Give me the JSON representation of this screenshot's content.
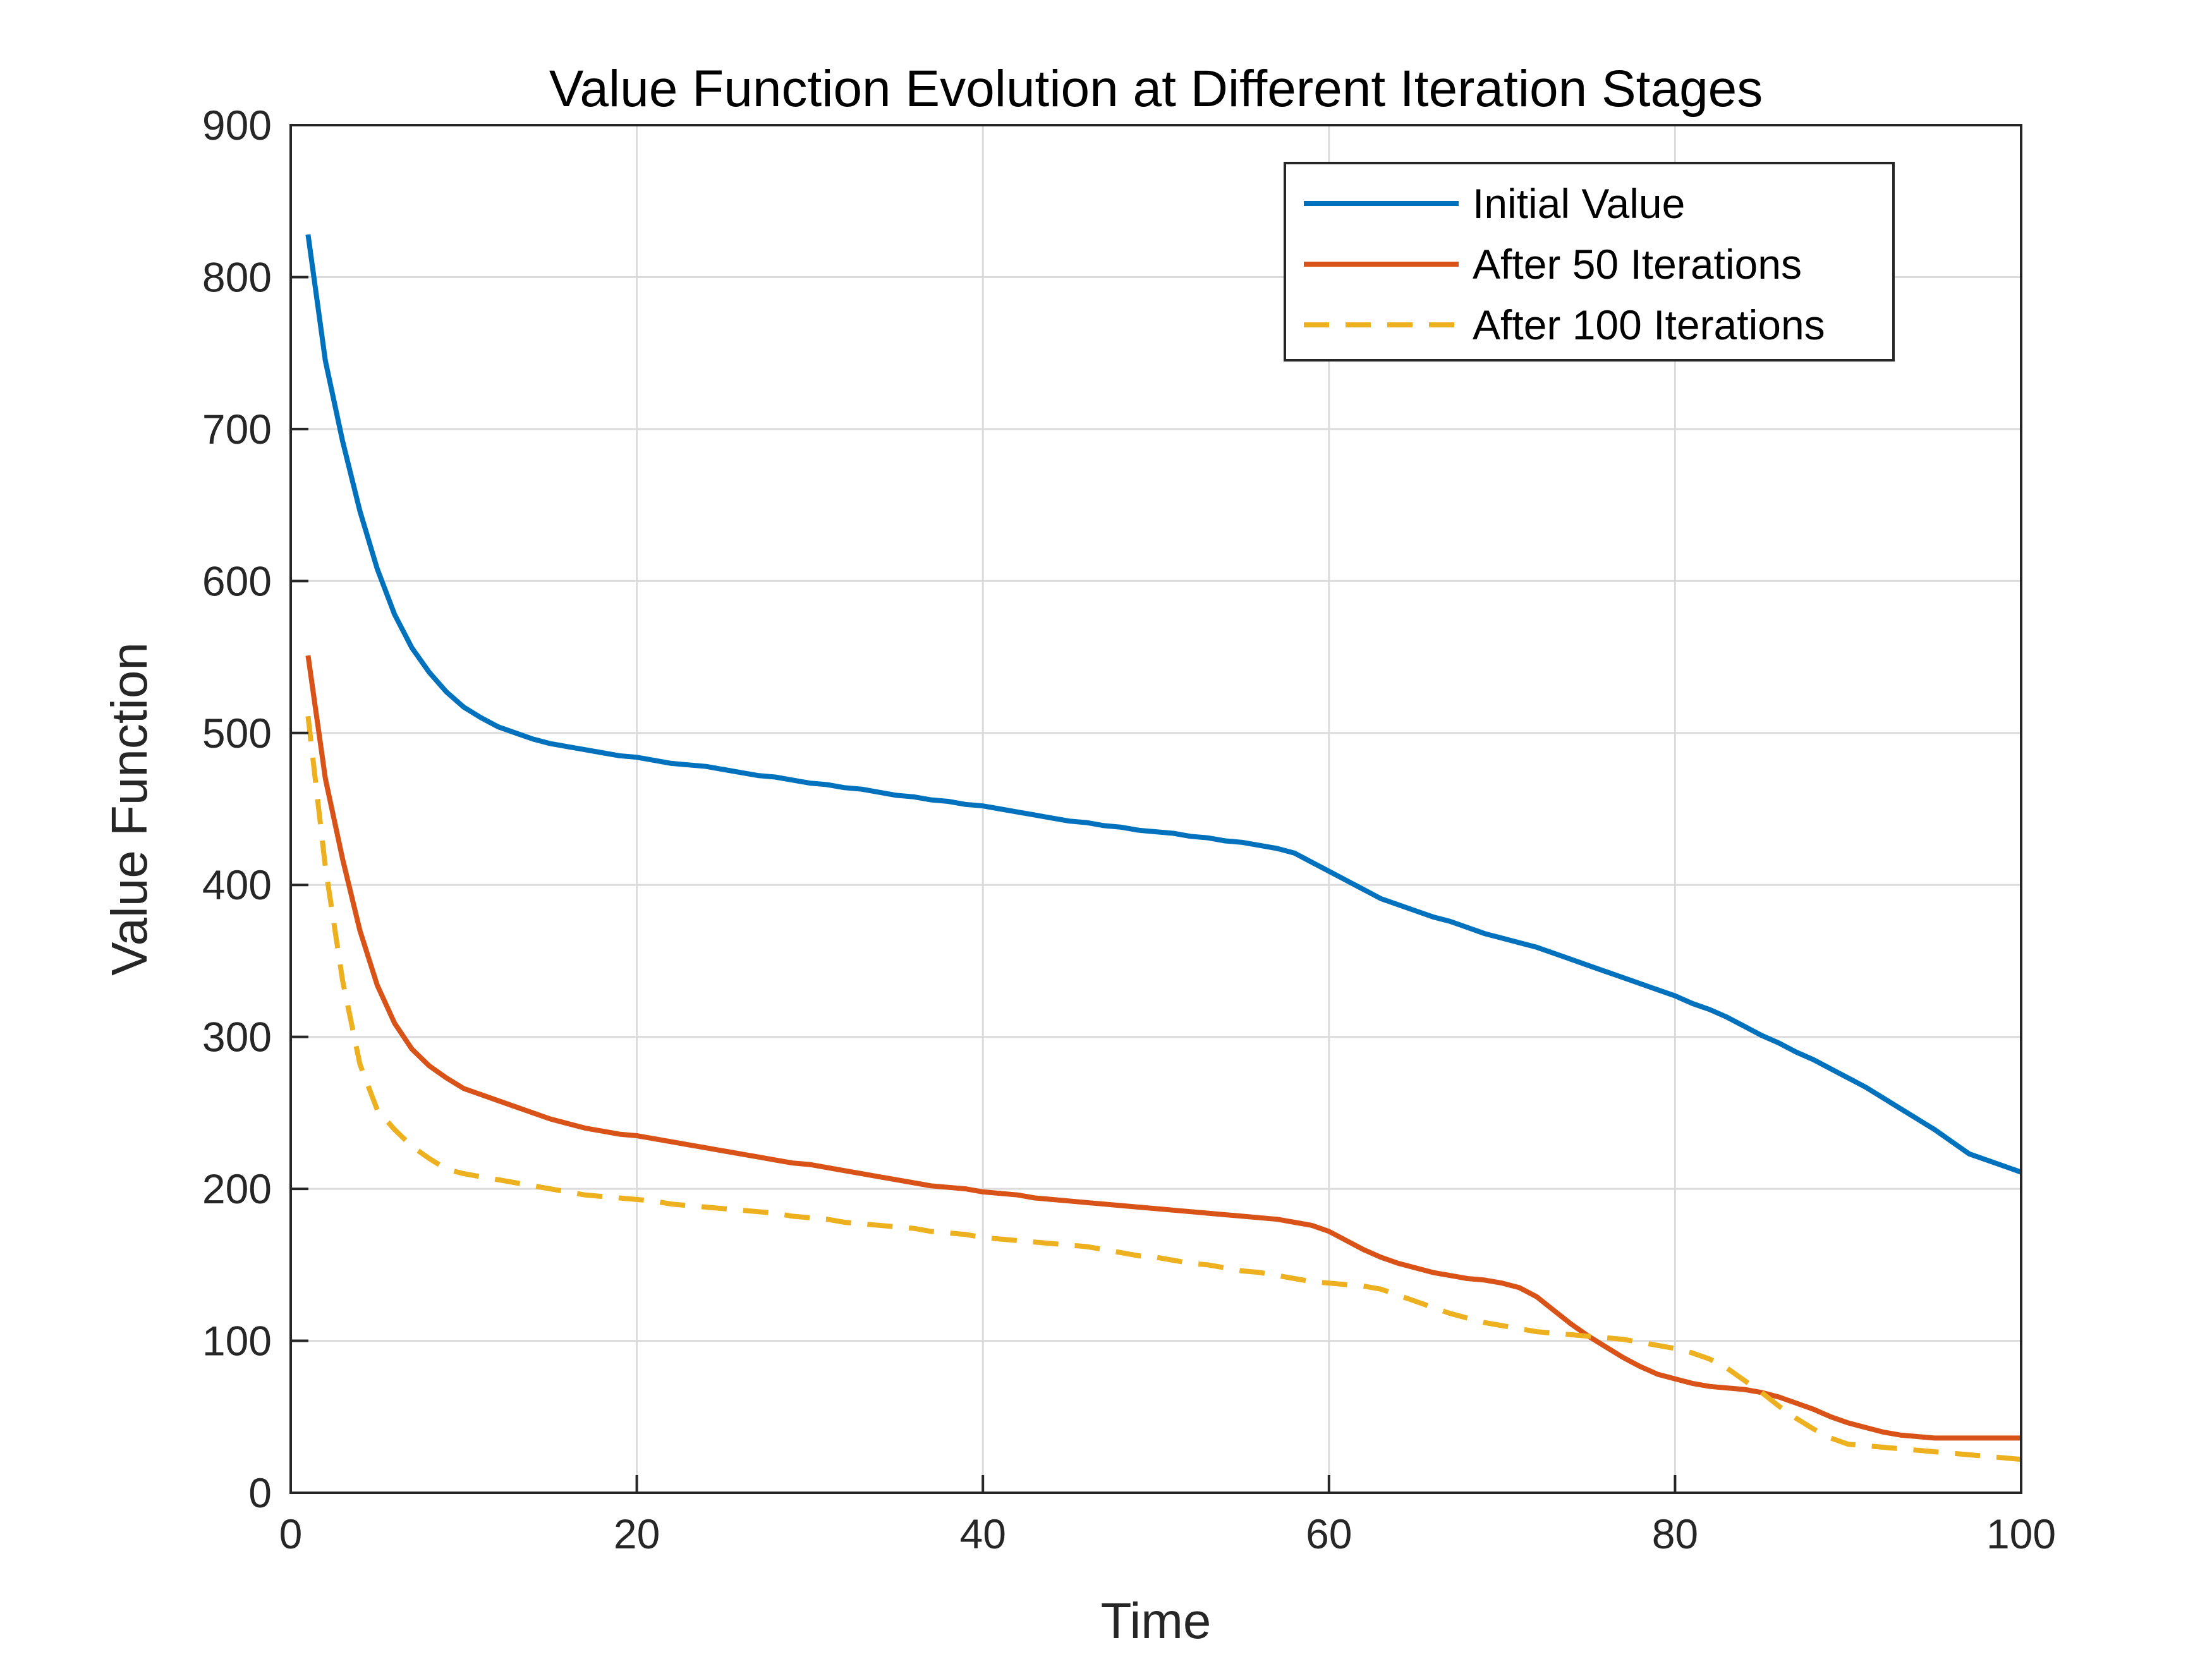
{
  "chart_data": {
    "type": "line",
    "title": "Value Function Evolution at Different Iteration Stages",
    "xlabel": "Time",
    "ylabel": "Value Function",
    "xlim": [
      0,
      100
    ],
    "ylim": [
      0,
      900
    ],
    "xticks": [
      0,
      20,
      40,
      60,
      80,
      100
    ],
    "yticks": [
      0,
      100,
      200,
      300,
      400,
      500,
      600,
      700,
      800,
      900
    ],
    "grid": true,
    "legend_position": "top-right",
    "x": [
      1,
      2,
      3,
      4,
      5,
      6,
      7,
      8,
      9,
      10,
      11,
      12,
      13,
      14,
      15,
      16,
      17,
      18,
      19,
      20,
      21,
      22,
      23,
      24,
      25,
      26,
      27,
      28,
      29,
      30,
      31,
      32,
      33,
      34,
      35,
      36,
      37,
      38,
      39,
      40,
      41,
      42,
      43,
      44,
      45,
      46,
      47,
      48,
      49,
      50,
      51,
      52,
      53,
      54,
      55,
      56,
      57,
      58,
      59,
      60,
      61,
      62,
      63,
      64,
      65,
      66,
      67,
      68,
      69,
      70,
      71,
      72,
      73,
      74,
      75,
      76,
      77,
      78,
      79,
      80,
      81,
      82,
      83,
      84,
      85,
      86,
      87,
      88,
      89,
      90,
      91,
      92,
      93,
      94,
      95,
      96,
      97,
      98,
      99,
      100
    ],
    "series": [
      {
        "name": "Initial Value",
        "color": "#0072BD",
        "style": "solid",
        "values": [
          828,
          745,
          692,
          646,
          608,
          578,
          556,
          540,
          527,
          517,
          510,
          504,
          500,
          496,
          493,
          491,
          489,
          487,
          485,
          484,
          482,
          480,
          479,
          478,
          476,
          474,
          472,
          471,
          469,
          467,
          466,
          464,
          463,
          461,
          459,
          458,
          456,
          455,
          453,
          452,
          450,
          448,
          446,
          444,
          442,
          441,
          439,
          438,
          436,
          435,
          434,
          432,
          431,
          429,
          428,
          426,
          424,
          421,
          415,
          409,
          403,
          397,
          391,
          387,
          383,
          379,
          376,
          372,
          368,
          365,
          362,
          359,
          355,
          351,
          347,
          343,
          339,
          335,
          331,
          327,
          322,
          318,
          313,
          307,
          301,
          296,
          290,
          285,
          279,
          273,
          267,
          260,
          253,
          246,
          239,
          231,
          223,
          219,
          215,
          211
        ]
      },
      {
        "name": "After 50 Iterations",
        "color": "#D95319",
        "style": "solid",
        "values": [
          551,
          470,
          417,
          370,
          334,
          309,
          292,
          281,
          273,
          266,
          262,
          258,
          254,
          250,
          246,
          243,
          240,
          238,
          236,
          235,
          233,
          231,
          229,
          227,
          225,
          223,
          221,
          219,
          217,
          216,
          214,
          212,
          210,
          208,
          206,
          204,
          202,
          201,
          200,
          198,
          197,
          196,
          194,
          193,
          192,
          191,
          190,
          189,
          188,
          187,
          186,
          185,
          184,
          183,
          182,
          181,
          180,
          178,
          176,
          172,
          166,
          160,
          155,
          151,
          148,
          145,
          143,
          141,
          140,
          138,
          135,
          129,
          120,
          111,
          103,
          96,
          89,
          83,
          78,
          75,
          72,
          70,
          69,
          68,
          66,
          63,
          59,
          55,
          50,
          46,
          43,
          40,
          38,
          37,
          36,
          36,
          36,
          36,
          36,
          36
        ]
      },
      {
        "name": "After 100 Iterations",
        "color": "#EDB120",
        "style": "dashed",
        "values": [
          511,
          412,
          337,
          282,
          252,
          239,
          228,
          220,
          213,
          210,
          208,
          206,
          204,
          202,
          200,
          198,
          196,
          195,
          194,
          193,
          192,
          190,
          189,
          188,
          187,
          186,
          185,
          184,
          182,
          181,
          180,
          178,
          177,
          176,
          175,
          174,
          172,
          171,
          170,
          168,
          167,
          166,
          165,
          164,
          163,
          162,
          160,
          158,
          156,
          155,
          153,
          151,
          150,
          148,
          146,
          145,
          143,
          141,
          139,
          138,
          137,
          136,
          134,
          130,
          126,
          122,
          118,
          115,
          112,
          110,
          108,
          106,
          105,
          104,
          103,
          102,
          101,
          99,
          97,
          95,
          92,
          88,
          82,
          74,
          66,
          57,
          49,
          42,
          36,
          32,
          31,
          30,
          29,
          28,
          27,
          26,
          25,
          24,
          23,
          22
        ]
      }
    ]
  }
}
